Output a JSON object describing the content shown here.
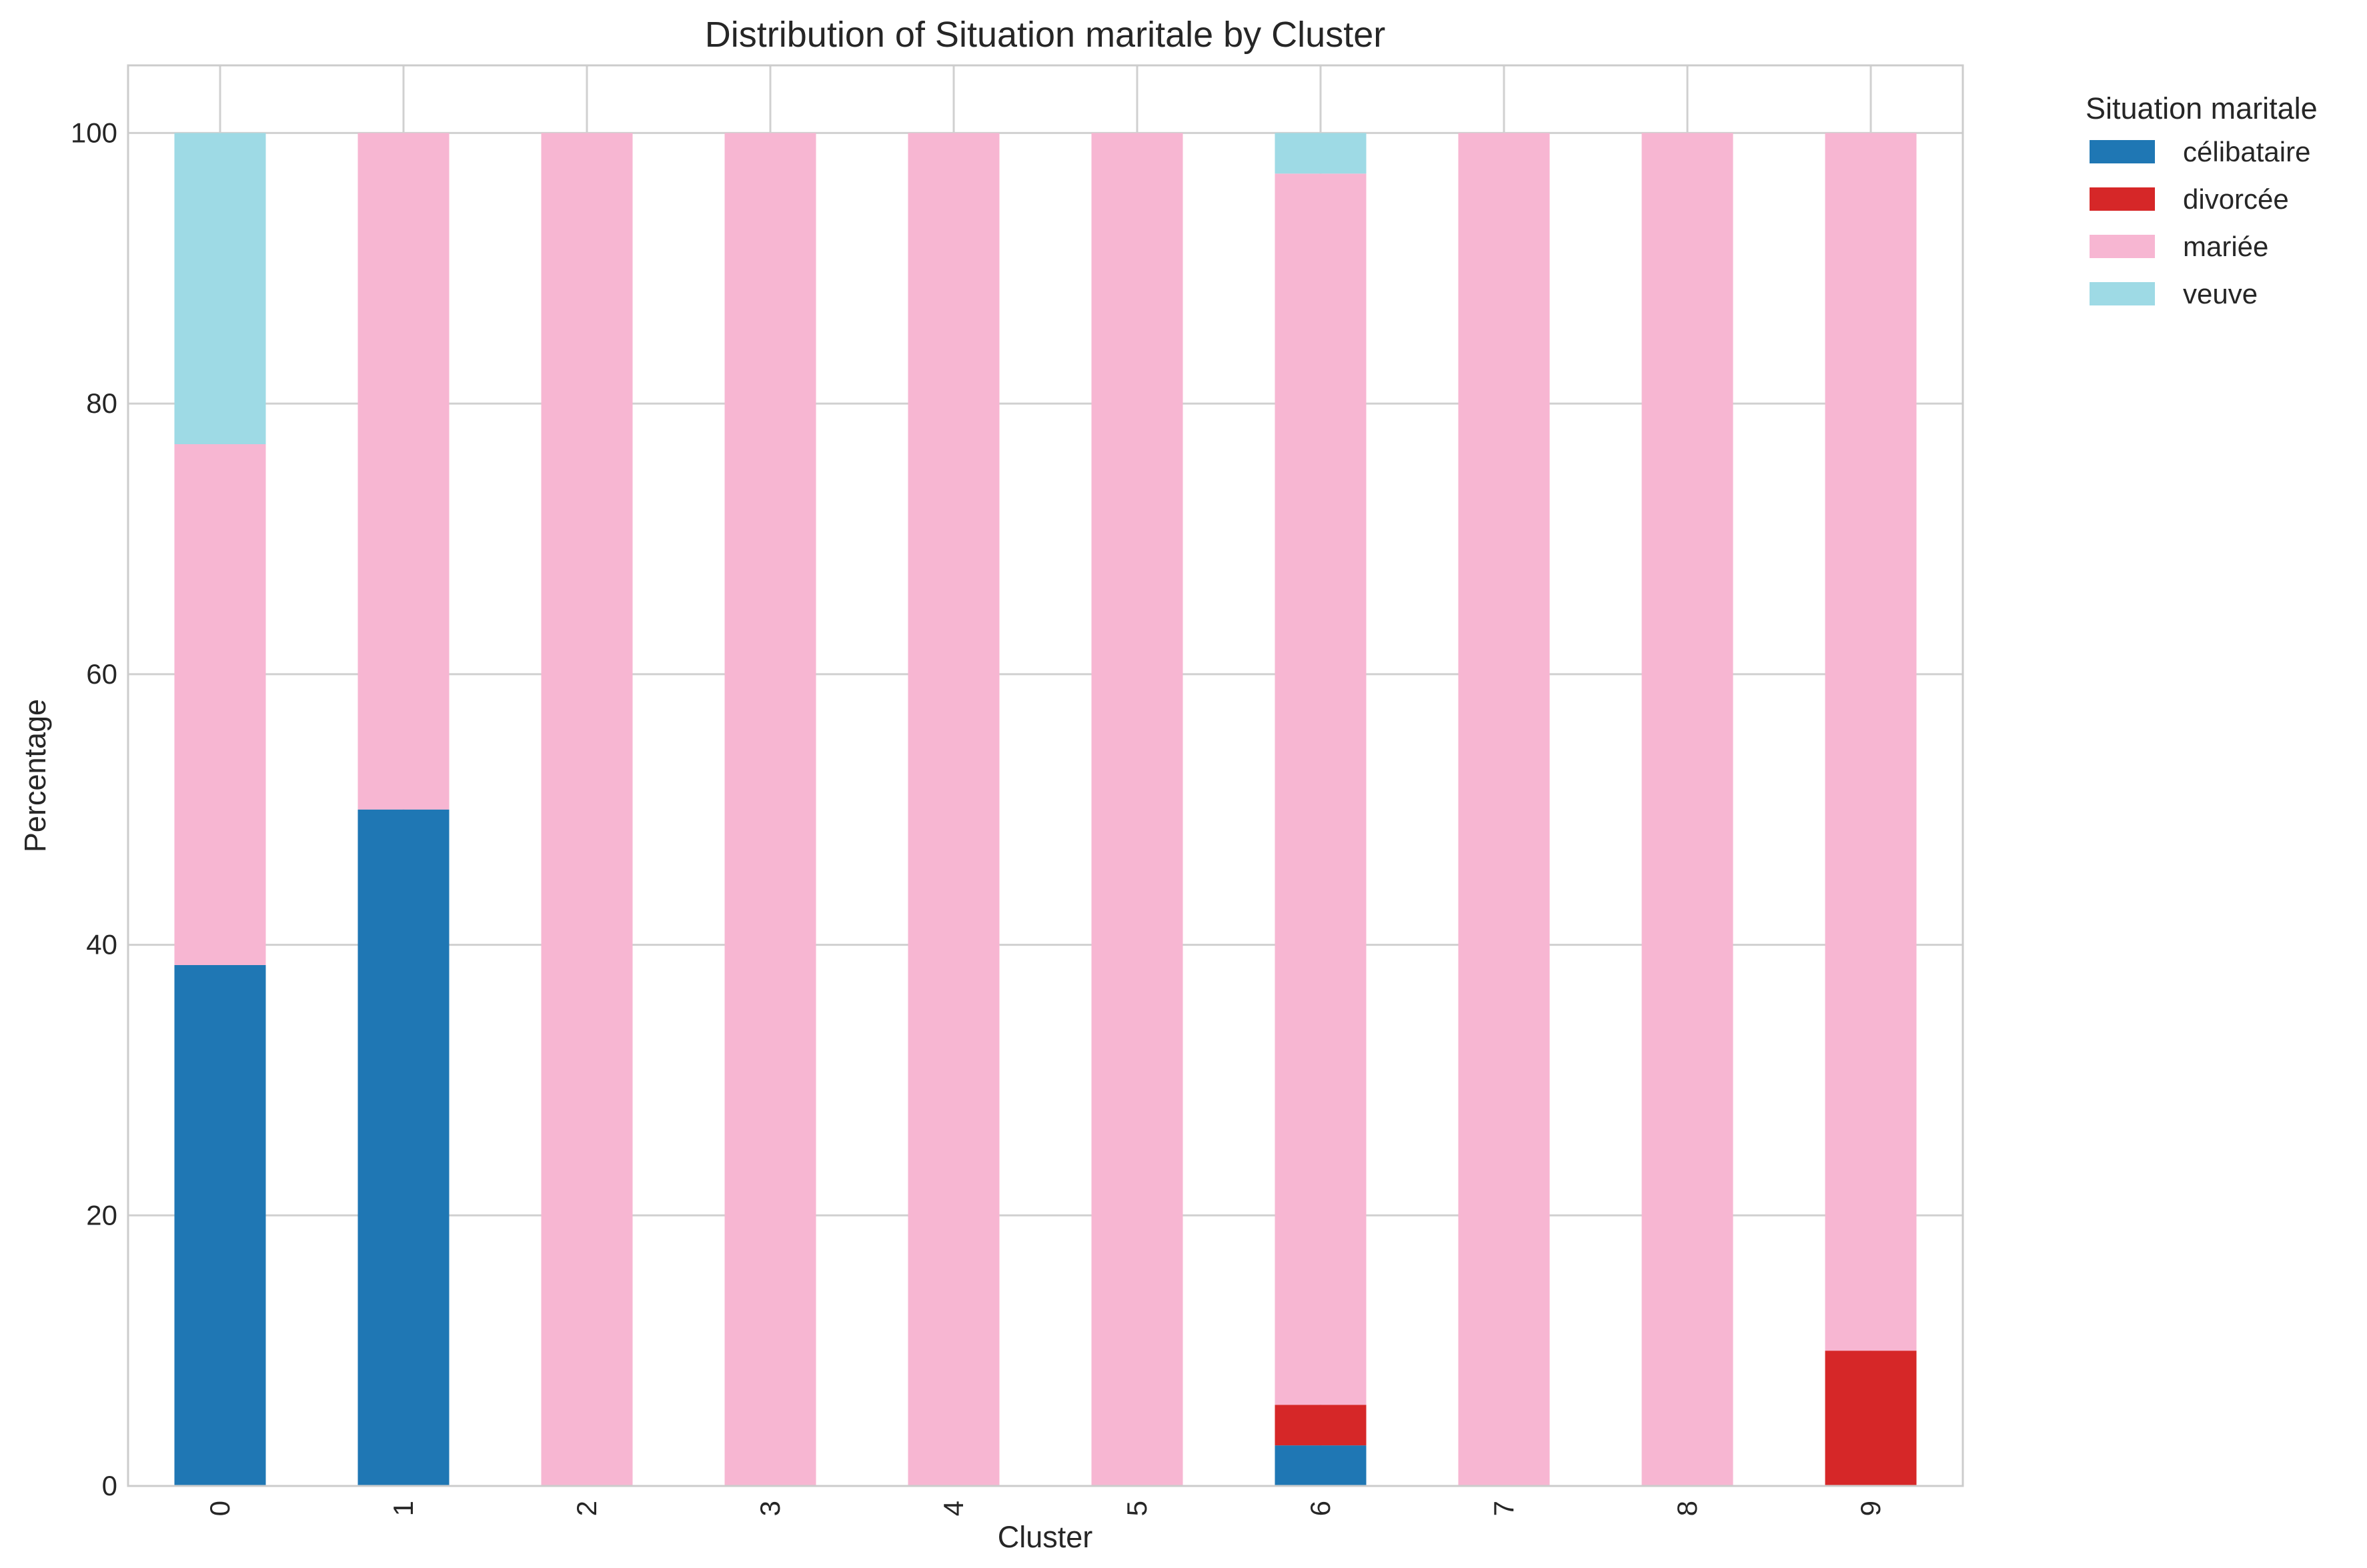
{
  "chart_data": {
    "type": "bar",
    "stacked": true,
    "title": "Distribution of Situation maritale by Cluster",
    "xlabel": "Cluster",
    "ylabel": "Percentage",
    "categories": [
      "0",
      "1",
      "2",
      "3",
      "4",
      "5",
      "6",
      "7",
      "8",
      "9"
    ],
    "ylim": [
      0,
      105
    ],
    "yticks": [
      0,
      20,
      40,
      60,
      80,
      100
    ],
    "grid": true,
    "legend": {
      "title": "Situation maritale",
      "placement": "outside-top-right"
    },
    "series": [
      {
        "name": "célibataire",
        "color": "#1f77b4",
        "values": [
          38.5,
          50,
          0,
          0,
          0,
          0,
          3,
          0,
          0,
          0
        ]
      },
      {
        "name": "divorcée",
        "color": "#d62728",
        "values": [
          0,
          0,
          0,
          0,
          0,
          0,
          3,
          0,
          0,
          10
        ]
      },
      {
        "name": "mariée",
        "color": "#f7b6d2",
        "values": [
          38.5,
          50,
          100,
          100,
          100,
          100,
          91,
          100,
          100,
          90
        ]
      },
      {
        "name": "veuve",
        "color": "#9edae5",
        "values": [
          23,
          0,
          0,
          0,
          0,
          0,
          3,
          0,
          0,
          0
        ]
      }
    ]
  }
}
